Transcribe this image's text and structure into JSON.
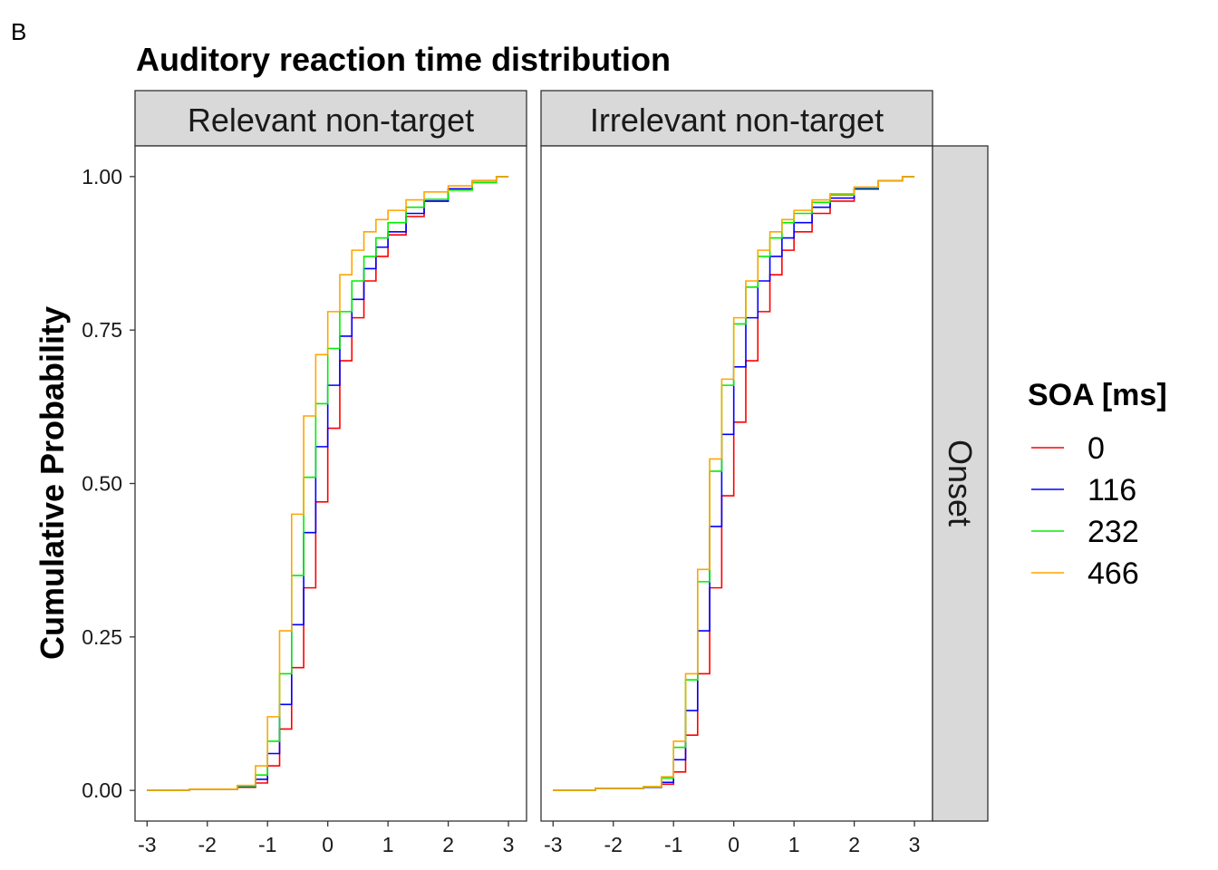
{
  "panel_label": "B",
  "chart_data": {
    "type": "line",
    "title": "Auditory reaction time distribution",
    "xlabel": "",
    "ylabel": "Cumulative Probability",
    "xlim": [
      -3.2,
      3.3
    ],
    "ylim": [
      -0.05,
      1.05
    ],
    "x_ticks": [
      -3,
      -2,
      -1,
      0,
      1,
      2,
      3
    ],
    "y_ticks": [
      0.0,
      0.25,
      0.5,
      0.75,
      1.0
    ],
    "x_tick_labels": [
      "-3",
      "-2",
      "-1",
      "0",
      "1",
      "2",
      "3"
    ],
    "y_tick_labels": [
      "0.00",
      "0.25",
      "0.50",
      "0.75",
      "1.00"
    ],
    "grid": false,
    "legend_position": "right",
    "legend_title": "SOA [ms]",
    "row_facets": [
      "Onset"
    ],
    "facets": [
      {
        "label": "Relevant non-target",
        "series": [
          {
            "name": "0",
            "color": "#ff0000",
            "x": [
              -3.0,
              -2.3,
              -1.5,
              -1.2,
              -1.0,
              -0.8,
              -0.6,
              -0.4,
              -0.2,
              0.0,
              0.2,
              0.4,
              0.6,
              0.8,
              1.0,
              1.3,
              1.6,
              2.0,
              2.4,
              2.8,
              3.0
            ],
            "y": [
              0.0,
              0.002,
              0.005,
              0.012,
              0.04,
              0.1,
              0.2,
              0.33,
              0.47,
              0.59,
              0.7,
              0.77,
              0.83,
              0.87,
              0.905,
              0.935,
              0.96,
              0.98,
              0.993,
              1.0,
              1.0
            ]
          },
          {
            "name": "116",
            "color": "#0000ff",
            "x": [
              -3.0,
              -2.3,
              -1.5,
              -1.2,
              -1.0,
              -0.8,
              -0.6,
              -0.4,
              -0.2,
              0.0,
              0.2,
              0.4,
              0.6,
              0.8,
              1.0,
              1.3,
              1.6,
              2.0,
              2.4,
              2.8,
              3.0
            ],
            "y": [
              0.0,
              0.002,
              0.006,
              0.018,
              0.06,
              0.14,
              0.27,
              0.42,
              0.56,
              0.66,
              0.74,
              0.8,
              0.85,
              0.885,
              0.91,
              0.94,
              0.96,
              0.98,
              0.993,
              1.0,
              1.0
            ]
          },
          {
            "name": "232",
            "color": "#00ee00",
            "x": [
              -3.0,
              -2.3,
              -1.5,
              -1.2,
              -1.0,
              -0.8,
              -0.6,
              -0.4,
              -0.2,
              0.0,
              0.2,
              0.4,
              0.6,
              0.8,
              1.0,
              1.3,
              1.6,
              2.0,
              2.4,
              2.8,
              3.0
            ],
            "y": [
              0.0,
              0.002,
              0.007,
              0.025,
              0.08,
              0.19,
              0.35,
              0.51,
              0.63,
              0.72,
              0.78,
              0.83,
              0.87,
              0.9,
              0.925,
              0.95,
              0.963,
              0.978,
              0.99,
              1.0,
              1.0
            ]
          },
          {
            "name": "466",
            "color": "#ffa500",
            "x": [
              -3.0,
              -2.3,
              -1.5,
              -1.2,
              -1.0,
              -0.8,
              -0.6,
              -0.4,
              -0.2,
              0.0,
              0.2,
              0.4,
              0.6,
              0.8,
              1.0,
              1.3,
              1.6,
              2.0,
              2.4,
              2.8,
              3.0
            ],
            "y": [
              0.0,
              0.002,
              0.008,
              0.04,
              0.12,
              0.26,
              0.45,
              0.61,
              0.71,
              0.78,
              0.84,
              0.88,
              0.91,
              0.93,
              0.945,
              0.962,
              0.975,
              0.985,
              0.993,
              1.0,
              1.0
            ]
          }
        ]
      },
      {
        "label": "Irrelevant non-target",
        "series": [
          {
            "name": "0",
            "color": "#ff0000",
            "x": [
              -3.0,
              -2.3,
              -1.5,
              -1.2,
              -1.0,
              -0.8,
              -0.6,
              -0.4,
              -0.2,
              0.0,
              0.2,
              0.4,
              0.6,
              0.8,
              1.0,
              1.3,
              1.6,
              2.0,
              2.4,
              2.8,
              3.0
            ],
            "y": [
              0.0,
              0.003,
              0.005,
              0.01,
              0.03,
              0.09,
              0.19,
              0.33,
              0.48,
              0.6,
              0.7,
              0.78,
              0.84,
              0.88,
              0.91,
              0.94,
              0.96,
              0.98,
              0.993,
              1.0,
              1.0
            ]
          },
          {
            "name": "116",
            "color": "#0000ff",
            "x": [
              -3.0,
              -2.3,
              -1.5,
              -1.2,
              -1.0,
              -0.8,
              -0.6,
              -0.4,
              -0.2,
              0.0,
              0.2,
              0.4,
              0.6,
              0.8,
              1.0,
              1.3,
              1.6,
              2.0,
              2.4,
              2.8,
              3.0
            ],
            "y": [
              0.0,
              0.003,
              0.005,
              0.013,
              0.05,
              0.13,
              0.26,
              0.43,
              0.58,
              0.69,
              0.77,
              0.83,
              0.87,
              0.9,
              0.925,
              0.95,
              0.965,
              0.98,
              0.993,
              1.0,
              1.0
            ]
          },
          {
            "name": "232",
            "color": "#00ee00",
            "x": [
              -3.0,
              -2.3,
              -1.5,
              -1.2,
              -1.0,
              -0.8,
              -0.6,
              -0.4,
              -0.2,
              0.0,
              0.2,
              0.4,
              0.6,
              0.8,
              1.0,
              1.3,
              1.6,
              2.0,
              2.4,
              2.8,
              3.0
            ],
            "y": [
              0.0,
              0.003,
              0.006,
              0.02,
              0.07,
              0.18,
              0.34,
              0.52,
              0.66,
              0.76,
              0.82,
              0.87,
              0.9,
              0.925,
              0.94,
              0.958,
              0.97,
              0.982,
              0.993,
              1.0,
              1.0
            ]
          },
          {
            "name": "466",
            "color": "#ffa500",
            "x": [
              -3.0,
              -2.3,
              -1.5,
              -1.2,
              -1.0,
              -0.8,
              -0.6,
              -0.4,
              -0.2,
              0.0,
              0.2,
              0.4,
              0.6,
              0.8,
              1.0,
              1.3,
              1.6,
              2.0,
              2.4,
              2.8,
              3.0
            ],
            "y": [
              0.0,
              0.003,
              0.006,
              0.022,
              0.08,
              0.19,
              0.36,
              0.54,
              0.67,
              0.77,
              0.83,
              0.88,
              0.91,
              0.93,
              0.945,
              0.962,
              0.972,
              0.983,
              0.993,
              1.0,
              1.0
            ]
          }
        ]
      }
    ]
  }
}
